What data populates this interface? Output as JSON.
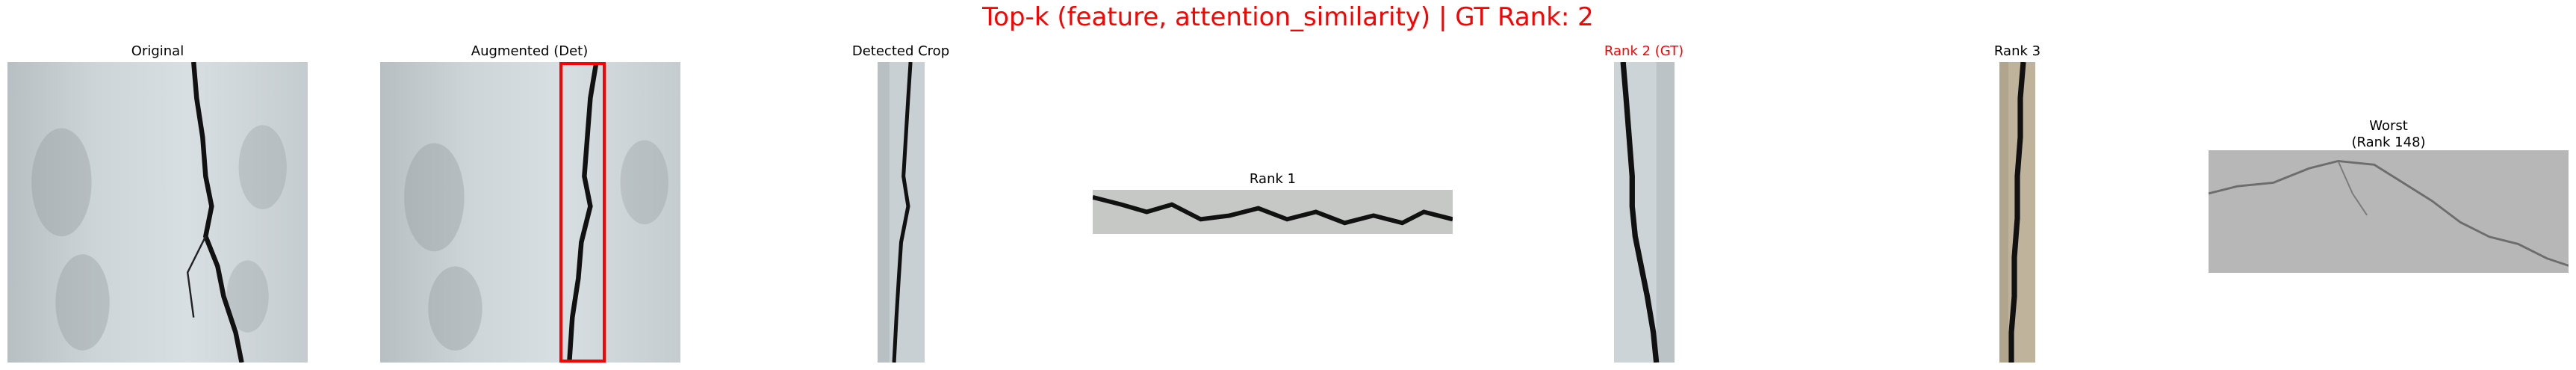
{
  "figure": {
    "title": "Top-k (feature, attention_similarity) | GT Rank: 2",
    "title_color": "#ff0000"
  },
  "panels": {
    "original": {
      "title": "Original"
    },
    "augmented": {
      "title": "Augmented (Det)",
      "box_color": "#ff0000"
    },
    "detected": {
      "title": "Detected Crop"
    },
    "rank1": {
      "title": "Rank 1"
    },
    "rank2": {
      "title": "Rank 2 (GT)",
      "title_color": "#ff0000"
    },
    "rank3": {
      "title": "Rank 3"
    },
    "worst": {
      "title_line1": "Worst",
      "title_line2": "(Rank 148)"
    }
  }
}
